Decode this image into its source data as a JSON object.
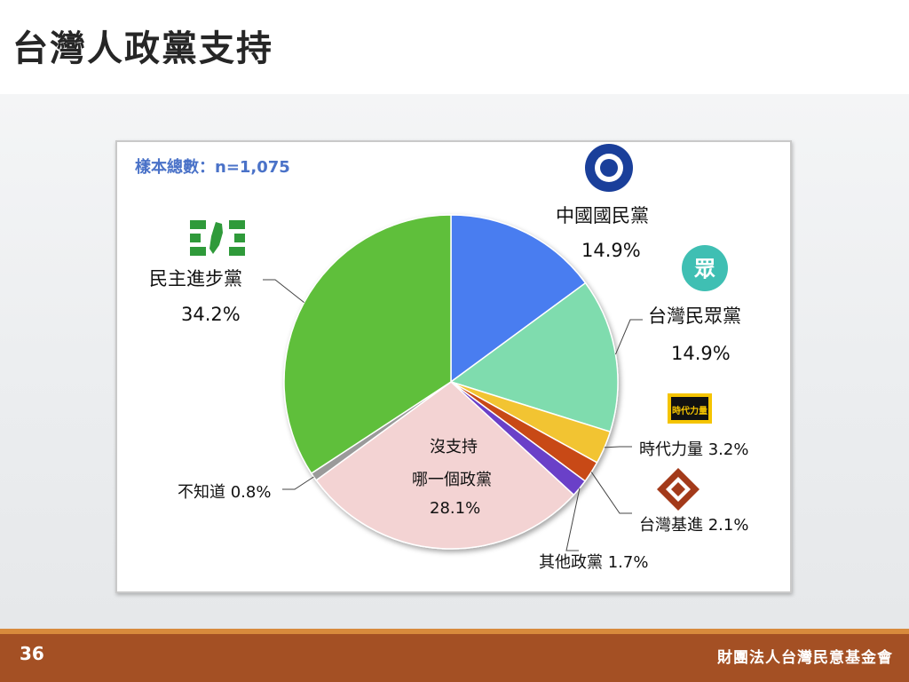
{
  "page": {
    "title": "台灣人政黨支持",
    "page_number": "36",
    "organization": "財團法人台灣民意基金會",
    "sample_text": "樣本總數：n=1,075"
  },
  "logos": {
    "kmt_text": "",
    "tpp_text": "眾",
    "npp_text": "時代力量"
  },
  "chart_data": {
    "type": "pie",
    "title": "",
    "slices": [
      {
        "name": "中國國民黨",
        "value": 14.9,
        "label": "14.9%",
        "color": "#4a7df0"
      },
      {
        "name": "台灣民眾黨",
        "value": 14.9,
        "label": "14.9%",
        "color": "#7fdcae"
      },
      {
        "name": "時代力量",
        "value": 3.2,
        "label": "時代力量 3.2%",
        "color": "#f2c430"
      },
      {
        "name": "台灣基進",
        "value": 2.1,
        "label": "台灣基進 2.1%",
        "color": "#c84a18"
      },
      {
        "name": "其他政黨",
        "value": 1.7,
        "label": "其他政黨 1.7%",
        "color": "#6a3fc8"
      },
      {
        "name": "沒支持哪一個政黨",
        "value": 28.1,
        "label": "28.1%",
        "color": "#f3d3d3"
      },
      {
        "name": "不知道",
        "value": 0.8,
        "label": "不知道 0.8%",
        "color": "#9a9a9a"
      },
      {
        "name": "民主進步黨",
        "value": 34.2,
        "label": "34.2%",
        "color": "#5fbf3a"
      }
    ],
    "label_lines": {
      "kmt": "中國國民黨",
      "tpp": "台灣民眾黨",
      "dpp": "民主進步黨",
      "none_1": "沒支持",
      "none_2": "哪一個政黨"
    },
    "colors": {
      "accent": "#a45024",
      "footer_line": "#d88a3c",
      "sample_text": "#4a72c8"
    }
  }
}
